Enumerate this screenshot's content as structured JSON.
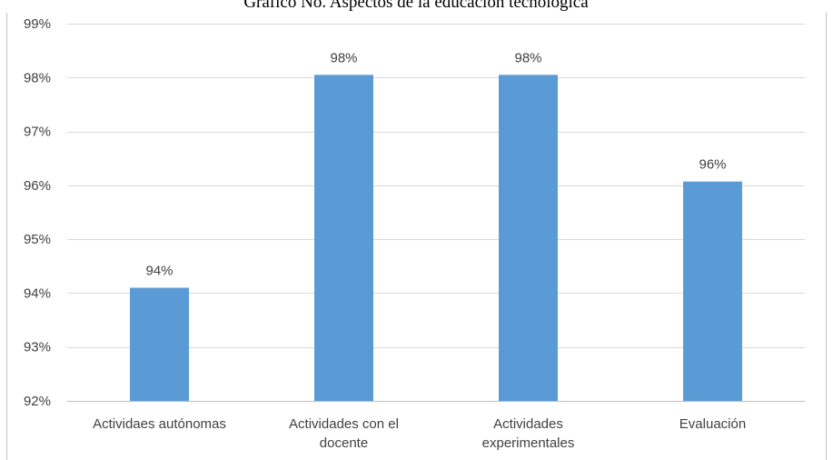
{
  "chart_data": {
    "type": "bar",
    "title": "Gráfico No. Aspectos de la educación tecnológica",
    "categories": [
      [
        "Actividaes autónomas"
      ],
      [
        "Actividades con el",
        "docente"
      ],
      [
        "Actividades",
        "experimentales"
      ],
      [
        "Evaluación"
      ]
    ],
    "values": [
      94.1,
      98.05,
      98.05,
      96.07
    ],
    "data_labels": [
      "94%",
      "98%",
      "98%",
      "96%"
    ],
    "yticks": [
      92,
      93,
      94,
      95,
      96,
      97,
      98,
      99
    ],
    "ytick_labels": [
      "92%",
      "93%",
      "94%",
      "95%",
      "96%",
      "97%",
      "98%",
      "99%"
    ],
    "ylim": [
      92,
      99
    ],
    "xlabel": "",
    "ylabel": "",
    "grid": true,
    "legend": "none",
    "bar_color": "#5b9bd5"
  }
}
